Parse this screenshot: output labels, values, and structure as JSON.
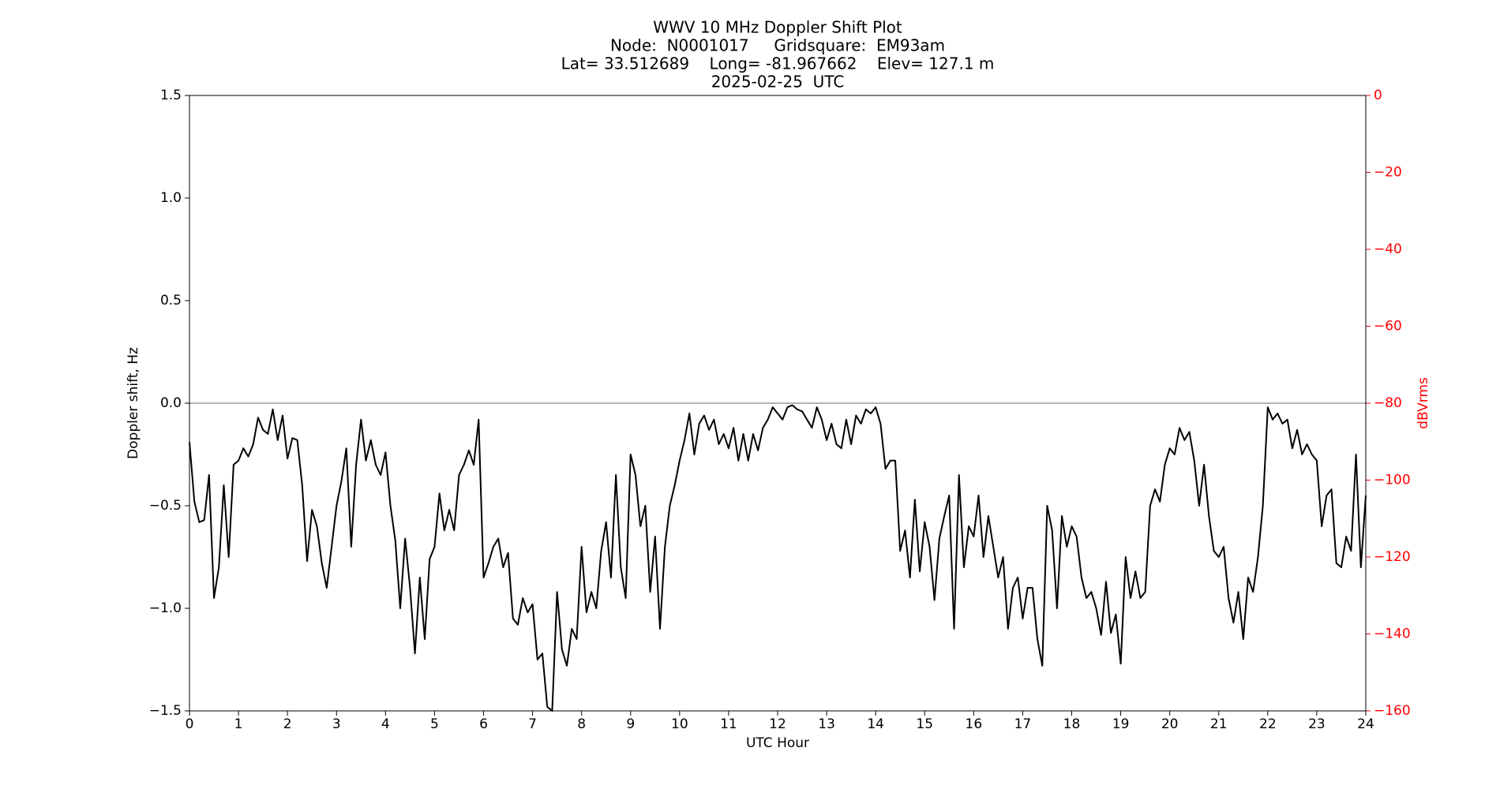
{
  "chart_data": {
    "type": "line",
    "title": [
      "WWV 10 MHz Doppler Shift Plot",
      "Node:  N0001017     Gridsquare:  EM93am",
      "Lat= 33.512689    Long= -81.967662    Elev= 127.1 m",
      "2025-02-25  UTC"
    ],
    "x_label": "UTC Hour",
    "y_label": "Doppler shift, Hz",
    "y2_label": "dBVrms",
    "y2_color": "#ff0000",
    "xlim": [
      0,
      24
    ],
    "xticks": [
      0,
      1,
      2,
      3,
      4,
      5,
      6,
      7,
      8,
      9,
      10,
      11,
      12,
      13,
      14,
      15,
      16,
      17,
      18,
      19,
      20,
      21,
      22,
      23,
      24
    ],
    "ylim": [
      -1.5,
      1.5
    ],
    "yticks": [
      {
        "value": -1.5,
        "label": "−1.5"
      },
      {
        "value": -1.0,
        "label": "−1.0"
      },
      {
        "value": -0.5,
        "label": "−0.5"
      },
      {
        "value": 0,
        "label": "0.0"
      },
      0.5,
      {
        "value": 1.0,
        "label": "1.0"
      },
      1.5
    ],
    "y2lim": [
      -160,
      0
    ],
    "y2ticks": [
      {
        "value": -160,
        "label": "−160"
      },
      {
        "value": -140,
        "label": "−140"
      },
      {
        "value": -120,
        "label": "−120"
      },
      {
        "value": -100,
        "label": "−100"
      },
      {
        "value": -80,
        "label": "−80"
      },
      {
        "value": -60,
        "label": "−60"
      },
      {
        "value": -40,
        "label": "−40"
      },
      {
        "value": -20,
        "label": "−20"
      },
      0
    ],
    "reference_line": 0,
    "reference_color": "#888888",
    "x": [
      0,
      0.1,
      0.2,
      0.3,
      0.4,
      0.5,
      0.6,
      0.7,
      0.8,
      0.9,
      1,
      1.1,
      1.2,
      1.3,
      1.4,
      1.5,
      1.6,
      1.7,
      1.8,
      1.9,
      2,
      2.1,
      2.2,
      2.3,
      2.4,
      2.5,
      2.6,
      2.7,
      2.8,
      2.9,
      3,
      3.1,
      3.2,
      3.3,
      3.4,
      3.5,
      3.6,
      3.7,
      3.8,
      3.9,
      4,
      4.1,
      4.2,
      4.3,
      4.4,
      4.5,
      4.6,
      4.7,
      4.8,
      4.9,
      5,
      5.1,
      5.2,
      5.3,
      5.4,
      5.5,
      5.6,
      5.7,
      5.8,
      5.9,
      6,
      6.1,
      6.2,
      6.3,
      6.4,
      6.5,
      6.6,
      6.7,
      6.8,
      6.9,
      7,
      7.1,
      7.2,
      7.3,
      7.4,
      7.5,
      7.6,
      7.7,
      7.8,
      7.9,
      8,
      8.1,
      8.2,
      8.3,
      8.4,
      8.5,
      8.6,
      8.7,
      8.8,
      8.9,
      9,
      9.1,
      9.2,
      9.3,
      9.4,
      9.5,
      9.6,
      9.7,
      9.8,
      9.9,
      10,
      10.1,
      10.2,
      10.3,
      10.4,
      10.5,
      10.6,
      10.7,
      10.8,
      10.9,
      11,
      11.1,
      11.2,
      11.3,
      11.4,
      11.5,
      11.6,
      11.7,
      11.8,
      11.9,
      12,
      12.1,
      12.2,
      12.3,
      12.4,
      12.5,
      12.6,
      12.7,
      12.8,
      12.9,
      13,
      13.1,
      13.2,
      13.3,
      13.4,
      13.5,
      13.6,
      13.7,
      13.8,
      13.9,
      14,
      14.1,
      14.2,
      14.3,
      14.4,
      14.5,
      14.6,
      14.7,
      14.8,
      14.9,
      15,
      15.1,
      15.2,
      15.3,
      15.4,
      15.5,
      15.6,
      15.7,
      15.8,
      15.9,
      16,
      16.1,
      16.2,
      16.3,
      16.4,
      16.5,
      16.6,
      16.7,
      16.8,
      16.9,
      17,
      17.1,
      17.2,
      17.3,
      17.4,
      17.5,
      17.6,
      17.7,
      17.8,
      17.9,
      18,
      18.1,
      18.2,
      18.3,
      18.4,
      18.5,
      18.6,
      18.7,
      18.8,
      18.9,
      19,
      19.1,
      19.2,
      19.3,
      19.4,
      19.5,
      19.6,
      19.7,
      19.8,
      19.9,
      20,
      20.1,
      20.2,
      20.3,
      20.4,
      20.5,
      20.6,
      20.7,
      20.8,
      20.9,
      21,
      21.1,
      21.2,
      21.3,
      21.4,
      21.5,
      21.6,
      21.7,
      21.8,
      21.9,
      22,
      22.1,
      22.2,
      22.3,
      22.4,
      22.5,
      22.6,
      22.7,
      22.8,
      22.9,
      23,
      23.1,
      23.2,
      23.3,
      23.4,
      23.5,
      23.6,
      23.7,
      23.8,
      23.9,
      24
    ],
    "series": [
      {
        "color": "#000000",
        "values": [
          -0.19,
          -0.48,
          -0.58,
          -0.57,
          -0.35,
          -0.95,
          -0.8,
          -0.4,
          -0.75,
          -0.3,
          -0.28,
          -0.22,
          -0.26,
          -0.2,
          -0.07,
          -0.13,
          -0.15,
          -0.03,
          -0.18,
          -0.06,
          -0.27,
          -0.17,
          -0.18,
          -0.4,
          -0.77,
          -0.52,
          -0.6,
          -0.78,
          -0.9,
          -0.7,
          -0.5,
          -0.38,
          -0.22,
          -0.7,
          -0.3,
          -0.08,
          -0.28,
          -0.18,
          -0.3,
          -0.35,
          -0.24,
          -0.5,
          -0.67,
          -1.0,
          -0.66,
          -0.9,
          -1.22,
          -0.85,
          -1.15,
          -0.76,
          -0.7,
          -0.44,
          -0.62,
          -0.52,
          -0.62,
          -0.35,
          -0.3,
          -0.23,
          -0.3,
          -0.08,
          -0.85,
          -0.78,
          -0.7,
          -0.66,
          -0.8,
          -0.73,
          -1.05,
          -1.08,
          -0.95,
          -1.02,
          -0.98,
          -1.25,
          -1.22,
          -1.48,
          -1.5,
          -0.92,
          -1.2,
          -1.28,
          -1.1,
          -1.15,
          -0.7,
          -1.02,
          -0.92,
          -1.0,
          -0.72,
          -0.58,
          -0.85,
          -0.35,
          -0.8,
          -0.95,
          -0.25,
          -0.35,
          -0.6,
          -0.5,
          -0.92,
          -0.65,
          -1.1,
          -0.7,
          -0.5,
          -0.4,
          -0.28,
          -0.18,
          -0.05,
          -0.25,
          -0.1,
          -0.06,
          -0.13,
          -0.08,
          -0.2,
          -0.15,
          -0.22,
          -0.12,
          -0.28,
          -0.15,
          -0.28,
          -0.15,
          -0.23,
          -0.12,
          -0.08,
          -0.02,
          -0.05,
          -0.08,
          -0.02,
          -0.01,
          -0.03,
          -0.04,
          -0.08,
          -0.12,
          -0.02,
          -0.08,
          -0.18,
          -0.1,
          -0.2,
          -0.22,
          -0.08,
          -0.2,
          -0.06,
          -0.1,
          -0.03,
          -0.05,
          -0.02,
          -0.1,
          -0.32,
          -0.28,
          -0.28,
          -0.72,
          -0.62,
          -0.85,
          -0.47,
          -0.82,
          -0.58,
          -0.7,
          -0.96,
          -0.66,
          -0.55,
          -0.45,
          -1.1,
          -0.35,
          -0.8,
          -0.6,
          -0.65,
          -0.45,
          -0.75,
          -0.55,
          -0.7,
          -0.85,
          -0.75,
          -1.1,
          -0.9,
          -0.85,
          -1.05,
          -0.9,
          -0.9,
          -1.15,
          -1.28,
          -0.5,
          -0.62,
          -1.0,
          -0.55,
          -0.7,
          -0.6,
          -0.65,
          -0.85,
          -0.95,
          -0.92,
          -1.0,
          -1.13,
          -0.87,
          -1.12,
          -1.03,
          -1.27,
          -0.75,
          -0.95,
          -0.82,
          -0.95,
          -0.92,
          -0.5,
          -0.42,
          -0.48,
          -0.3,
          -0.22,
          -0.25,
          -0.12,
          -0.18,
          -0.14,
          -0.28,
          -0.5,
          -0.3,
          -0.55,
          -0.72,
          -0.75,
          -0.7,
          -0.95,
          -1.07,
          -0.92,
          -1.15,
          -0.85,
          -0.92,
          -0.75,
          -0.5,
          -0.02,
          -0.08,
          -0.05,
          -0.1,
          -0.08,
          -0.22,
          -0.13,
          -0.25,
          -0.2,
          -0.25,
          -0.28,
          -0.6,
          -0.45,
          -0.42,
          -0.78,
          -0.8,
          -0.65,
          -0.72,
          -0.25,
          -0.8,
          -0.45
        ]
      }
    ]
  }
}
